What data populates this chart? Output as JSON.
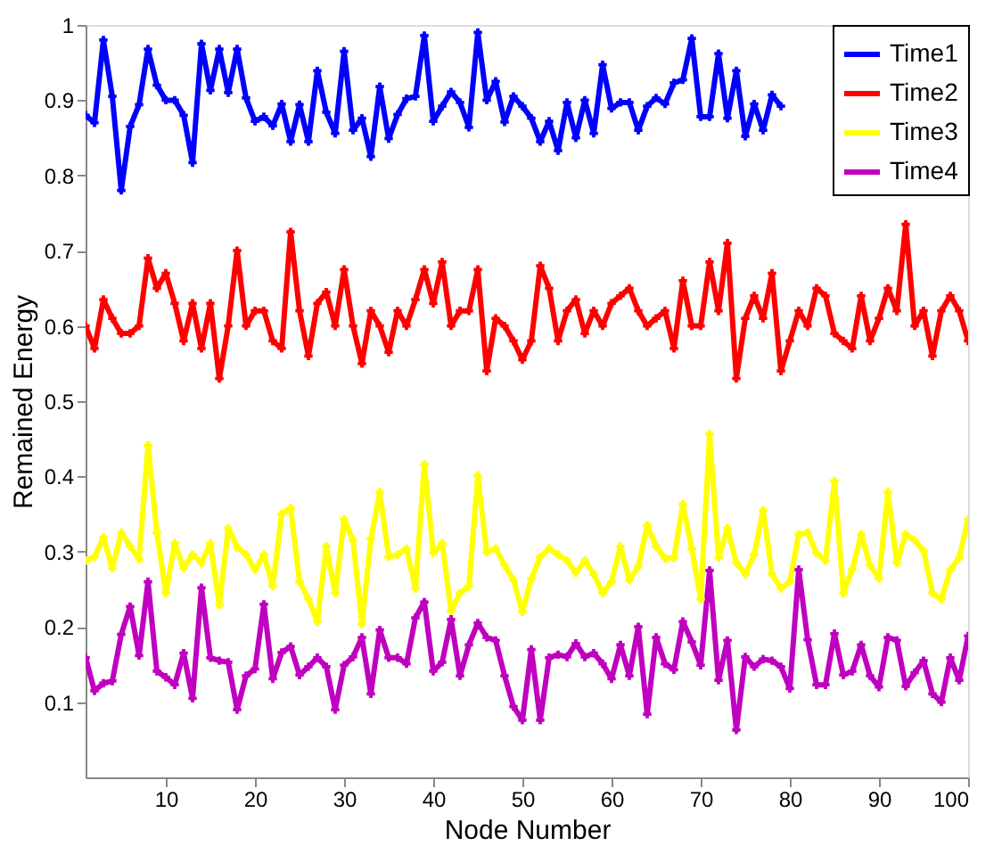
{
  "chart_data": {
    "type": "line",
    "xlabel": "Node Number",
    "ylabel": "Remained Energy",
    "x": [
      1,
      2,
      3,
      4,
      5,
      6,
      7,
      8,
      9,
      10,
      11,
      12,
      13,
      14,
      15,
      16,
      17,
      18,
      19,
      20,
      21,
      22,
      23,
      24,
      25,
      26,
      27,
      28,
      29,
      30,
      31,
      32,
      33,
      34,
      35,
      36,
      37,
      38,
      39,
      40,
      41,
      42,
      43,
      44,
      45,
      46,
      47,
      48,
      49,
      50,
      51,
      52,
      53,
      54,
      55,
      56,
      57,
      58,
      59,
      60,
      61,
      62,
      63,
      64,
      65,
      66,
      67,
      68,
      69,
      70,
      71,
      72,
      73,
      74,
      75,
      76,
      77,
      78,
      79,
      80,
      81,
      82,
      83,
      84,
      85,
      86,
      87,
      88,
      89,
      90,
      91,
      92,
      93,
      94,
      95,
      96,
      97,
      98,
      99,
      100
    ],
    "xlim": [
      1,
      100
    ],
    "xticks": [
      10,
      20,
      30,
      40,
      50,
      60,
      70,
      80,
      90,
      100
    ],
    "ylim": [
      0,
      1
    ],
    "yticks": [
      0.1,
      0.2,
      0.3,
      0.4,
      0.5,
      0.6,
      0.7,
      0.8,
      0.9,
      1
    ],
    "grid": false,
    "legend": "top right",
    "marker": "cross",
    "line_style": "solid",
    "series": [
      {
        "name": "Time1",
        "color": "#0000ff",
        "values": [
          0.88,
          0.87,
          0.98,
          0.905,
          0.78,
          0.865,
          0.894,
          0.968,
          0.92,
          0.9,
          0.9,
          0.88,
          0.817,
          0.975,
          0.913,
          0.968,
          0.91,
          0.968,
          0.903,
          0.872,
          0.878,
          0.866,
          0.895,
          0.845,
          0.894,
          0.845,
          0.939,
          0.884,
          0.856,
          0.965,
          0.86,
          0.876,
          0.825,
          0.918,
          0.849,
          0.881,
          0.902,
          0.905,
          0.986,
          0.872,
          0.892,
          0.911,
          0.897,
          0.864,
          0.99,
          0.9,
          0.925,
          0.871,
          0.905,
          0.892,
          0.876,
          0.845,
          0.872,
          0.833,
          0.897,
          0.85,
          0.9,
          0.856,
          0.947,
          0.889,
          0.897,
          0.897,
          0.86,
          0.892,
          0.903,
          0.895,
          0.923,
          0.927,
          0.982,
          0.878,
          0.878,
          0.962,
          0.876,
          0.939,
          0.852,
          0.895,
          0.86,
          0.907,
          0.892,
          null,
          null,
          null,
          null,
          null,
          null,
          null,
          null,
          null,
          null,
          null,
          null,
          null,
          null,
          null,
          null,
          null,
          null,
          null,
          null,
          null
        ]
      },
      {
        "name": "Time2",
        "color": "#ff0000",
        "values": [
          0.6,
          0.57,
          0.635,
          0.61,
          0.59,
          0.59,
          0.6,
          0.69,
          0.65,
          0.67,
          0.63,
          0.58,
          0.63,
          0.57,
          0.63,
          0.53,
          0.6,
          0.7,
          0.6,
          0.62,
          0.62,
          0.58,
          0.57,
          0.725,
          0.62,
          0.56,
          0.63,
          0.645,
          0.6,
          0.675,
          0.6,
          0.55,
          0.62,
          0.6,
          0.565,
          0.62,
          0.6,
          0.635,
          0.675,
          0.63,
          0.685,
          0.6,
          0.62,
          0.62,
          0.675,
          0.54,
          0.61,
          0.6,
          0.58,
          0.555,
          0.58,
          0.68,
          0.65,
          0.58,
          0.62,
          0.635,
          0.59,
          0.62,
          0.6,
          0.63,
          0.64,
          0.65,
          0.62,
          0.6,
          0.61,
          0.62,
          0.57,
          0.66,
          0.6,
          0.6,
          0.685,
          0.62,
          0.71,
          0.53,
          0.61,
          0.64,
          0.61,
          0.67,
          0.54,
          0.58,
          0.62,
          0.6,
          0.65,
          0.64,
          0.59,
          0.58,
          0.57,
          0.64,
          0.58,
          0.61,
          0.65,
          0.62,
          0.735,
          0.6,
          0.62,
          0.56,
          0.62,
          0.64,
          0.62,
          0.58
        ]
      },
      {
        "name": "Time3",
        "color": "#ffff00",
        "values": [
          0.288,
          0.293,
          0.319,
          0.278,
          0.325,
          0.307,
          0.29,
          0.441,
          0.325,
          0.245,
          0.311,
          0.278,
          0.296,
          0.285,
          0.311,
          0.229,
          0.331,
          0.306,
          0.296,
          0.276,
          0.296,
          0.254,
          0.35,
          0.358,
          0.26,
          0.237,
          0.207,
          0.307,
          0.245,
          0.343,
          0.315,
          0.204,
          0.317,
          0.379,
          0.293,
          0.296,
          0.304,
          0.251,
          0.416,
          0.298,
          0.311,
          0.221,
          0.245,
          0.254,
          0.401,
          0.299,
          0.304,
          0.282,
          0.262,
          0.22,
          0.264,
          0.293,
          0.304,
          0.296,
          0.288,
          0.272,
          0.288,
          0.27,
          0.245,
          0.26,
          0.307,
          0.262,
          0.28,
          0.335,
          0.307,
          0.291,
          0.292,
          0.363,
          0.304,
          0.237,
          0.456,
          0.292,
          0.331,
          0.285,
          0.27,
          0.296,
          0.355,
          0.27,
          0.251,
          0.26,
          0.323,
          0.325,
          0.298,
          0.288,
          0.394,
          0.245,
          0.276,
          0.323,
          0.282,
          0.264,
          0.379,
          0.285,
          0.323,
          0.315,
          0.301,
          0.245,
          0.237,
          0.276,
          0.292,
          0.343
        ]
      },
      {
        "name": "Time4",
        "color": "#bf00bf",
        "values": [
          0.159,
          0.115,
          0.125,
          0.128,
          0.19,
          0.227,
          0.162,
          0.26,
          0.141,
          0.133,
          0.123,
          0.165,
          0.105,
          0.252,
          0.159,
          0.155,
          0.153,
          0.09,
          0.135,
          0.144,
          0.23,
          0.131,
          0.166,
          0.174,
          0.136,
          0.147,
          0.159,
          0.147,
          0.09,
          0.149,
          0.16,
          0.186,
          0.111,
          0.196,
          0.159,
          0.159,
          0.151,
          0.212,
          0.233,
          0.141,
          0.153,
          0.21,
          0.135,
          0.176,
          0.205,
          0.186,
          0.182,
          0.135,
          0.094,
          0.076,
          0.17,
          0.076,
          0.159,
          0.163,
          0.16,
          0.178,
          0.16,
          0.165,
          0.151,
          0.131,
          0.176,
          0.135,
          0.2,
          0.084,
          0.186,
          0.151,
          0.143,
          0.207,
          0.18,
          0.149,
          0.275,
          0.129,
          0.182,
          0.063,
          0.16,
          0.147,
          0.157,
          0.155,
          0.147,
          0.118,
          0.276,
          0.183,
          0.123,
          0.123,
          0.191,
          0.136,
          0.141,
          0.176,
          0.135,
          0.12,
          0.186,
          0.182,
          0.121,
          0.139,
          0.155,
          0.111,
          0.1,
          0.159,
          0.129,
          0.188
        ]
      }
    ]
  }
}
